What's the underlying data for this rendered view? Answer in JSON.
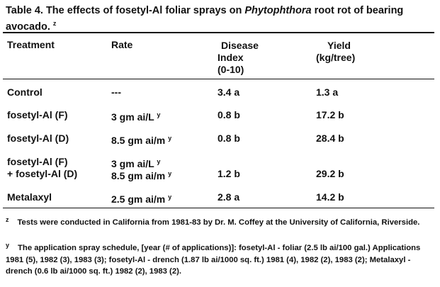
{
  "caption": {
    "prefix": "Table 4.  The effects of fosetyl-Al foliar sprays on ",
    "italic": "Phytophthora",
    "suffix": " root rot of bearing avocado.",
    "note_mark": "z"
  },
  "headers": {
    "treatment": "Treatment",
    "rate": "Rate",
    "disease_l1": "Disease",
    "disease_l2": "Index",
    "disease_l3": "(0-10)",
    "yield_l1": "Yield",
    "yield_l2": "(kg/tree)"
  },
  "rows": [
    {
      "treatment": "Control",
      "rate": "---",
      "disease": "3.4 a",
      "yield": "1.3 a"
    },
    {
      "treatment": "fosetyl-Al (F)",
      "rate": "3 gm ai/L",
      "rate_mark": "y",
      "disease": "0.8 b",
      "yield": "17.2 b"
    },
    {
      "treatment": "fosetyl-Al (D)",
      "rate": "8.5 gm ai/m",
      "rate_mark": "y",
      "disease": "0.8 b",
      "yield": "28.4 b"
    },
    {
      "treatment_l1": "fosetyl-Al (F)",
      "treatment_l2": "+ fosetyl-Al (D)",
      "rate_l1": "3 gm ai/L",
      "rate_l2": "8.5 gm ai/m",
      "rate_mark": "y",
      "disease": "1.2 b",
      "yield": "29.2 b"
    },
    {
      "treatment": "Metalaxyl",
      "rate": "2.5 gm ai/m",
      "rate_mark": "y",
      "disease": "2.8 a",
      "yield": "14.2 b"
    }
  ],
  "footnotes": {
    "z_mark": "z",
    "z_text": "Tests were conducted in California from 1981-83 by Dr. M. Coffey at the University of California, Riverside.",
    "y_mark": "y",
    "y_text": "The application spray schedule, [year (# of applications)]: fosetyl-Al - foliar (2.5 lb ai/100 gal.) Applications 1981 (5), 1982 (3), 1983 (3); fosetyl-Al - drench (1.87 lb ai/1000 sq. ft.) 1981 (4), 1982 (2), 1983 (2); Metalaxyl - drench (0.6 lb ai/1000 sq. ft.) 1982 (2), 1983 (2)."
  }
}
